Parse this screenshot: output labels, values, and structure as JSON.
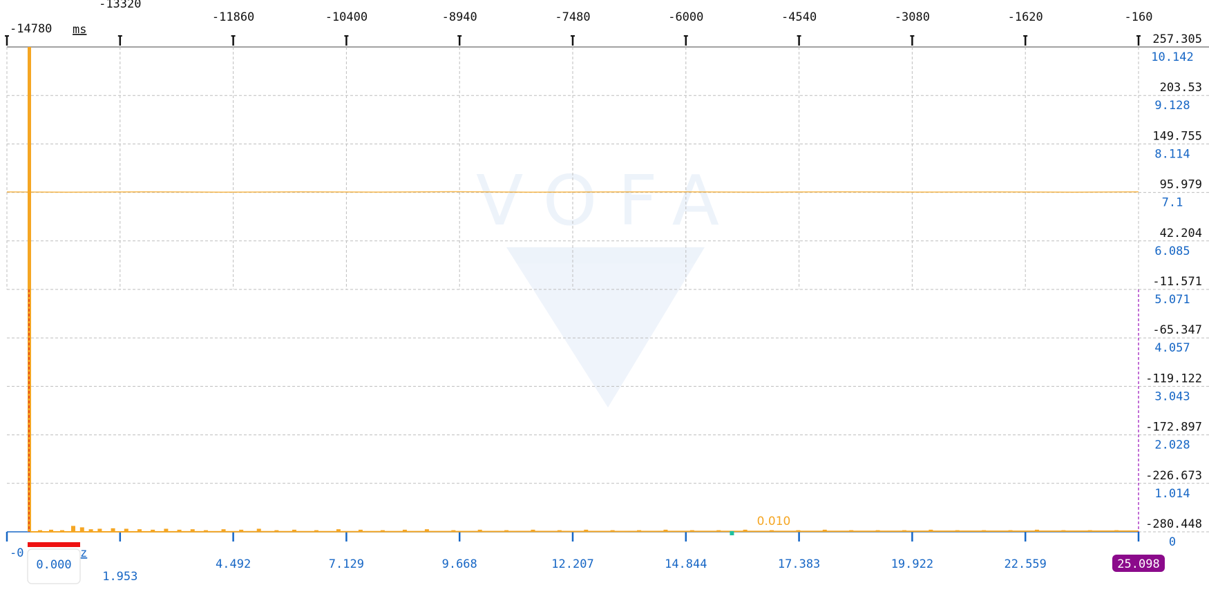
{
  "time_axis": {
    "unit": "ms",
    "ticks": [
      "-14780",
      "-13320",
      "-11860",
      "-10400",
      "-8940",
      "-7480",
      "-6000",
      "-4540",
      "-3080",
      "-1620",
      "-160"
    ]
  },
  "left_axis": {
    "ticks": [
      "257.305",
      "203.53",
      "149.755",
      "95.979",
      "42.204",
      "-11.571",
      "-65.347",
      "-119.122",
      "-172.897",
      "-226.673",
      "-280.448"
    ]
  },
  "right_axis": {
    "ticks": [
      "10.142",
      "9.128",
      "8.114",
      "7.1",
      "6.085",
      "5.071",
      "4.057",
      "3.043",
      "2.028",
      "1.014",
      "0"
    ]
  },
  "freq_axis": {
    "start_label": "-0",
    "unit_fragment": "z",
    "selected_start": "0.000",
    "selected_end": "25.098",
    "ticks": [
      "1.953",
      "4.492",
      "7.129",
      "9.668",
      "12.207",
      "14.844",
      "17.383",
      "19.922",
      "22.559"
    ]
  },
  "cursor": {
    "value_label": "0.010",
    "freq_value": 15.9
  },
  "watermark": {
    "text": "VOFA"
  },
  "colors": {
    "signal": "#f5a623",
    "grid": "#bdbdbd",
    "right_axis": "#1666c5",
    "selected_end_badge": "#8b0a8b",
    "marker_left": "#e02020",
    "marker_right": "#a020c0",
    "cursor_point": "#20c0a0",
    "red_bar": "#ee1111"
  },
  "chart_data": [
    {
      "type": "line",
      "xlabel": "ms",
      "xlim": [
        -14780,
        -160
      ],
      "ylim": [
        -280.448,
        257.305
      ],
      "series": [
        {
          "x": [
            -14780,
            -14000,
            -13000,
            -12000,
            -11000,
            -10000,
            -9000,
            -8000,
            -7000,
            -6000,
            -5000,
            -4000,
            -3000,
            -2000,
            -1000,
            -160
          ],
          "values": [
            96.5,
            96.2,
            96.7,
            96.3,
            96.6,
            96.4,
            96.8,
            96.2,
            96.5,
            96.6,
            96.3,
            96.7,
            96.4,
            96.5,
            96.3,
            96.6
          ]
        }
      ]
    },
    {
      "type": "bar",
      "xlim": [
        0,
        25.098
      ],
      "ylim": [
        0,
        10.142
      ],
      "peak": {
        "x": 0,
        "value": 10.142
      },
      "x": [
        0.25,
        0.5,
        0.75,
        1.0,
        1.2,
        1.4,
        1.6,
        1.9,
        2.2,
        2.5,
        2.8,
        3.1,
        3.4,
        3.7,
        4.0,
        4.4,
        4.8,
        5.2,
        5.6,
        6.0,
        6.5,
        7.0,
        7.5,
        8.0,
        8.5,
        9.0,
        9.6,
        10.2,
        10.8,
        11.4,
        12.0,
        12.6,
        13.2,
        13.8,
        14.4,
        15.0,
        15.6,
        16.2,
        16.8,
        17.4,
        18.0,
        18.6,
        19.2,
        19.8,
        20.4,
        21.0,
        21.6,
        22.2,
        22.8,
        23.4,
        24.0,
        24.6
      ],
      "values": [
        0.02,
        0.03,
        0.02,
        0.11,
        0.08,
        0.04,
        0.05,
        0.06,
        0.05,
        0.04,
        0.03,
        0.05,
        0.03,
        0.04,
        0.02,
        0.04,
        0.03,
        0.05,
        0.02,
        0.03,
        0.02,
        0.04,
        0.03,
        0.02,
        0.03,
        0.04,
        0.02,
        0.03,
        0.02,
        0.03,
        0.02,
        0.03,
        0.02,
        0.02,
        0.03,
        0.02,
        0.02,
        0.03,
        0.02,
        0.02,
        0.03,
        0.02,
        0.02,
        0.02,
        0.03,
        0.02,
        0.02,
        0.02,
        0.03,
        0.02,
        0.02,
        0.02
      ]
    }
  ]
}
